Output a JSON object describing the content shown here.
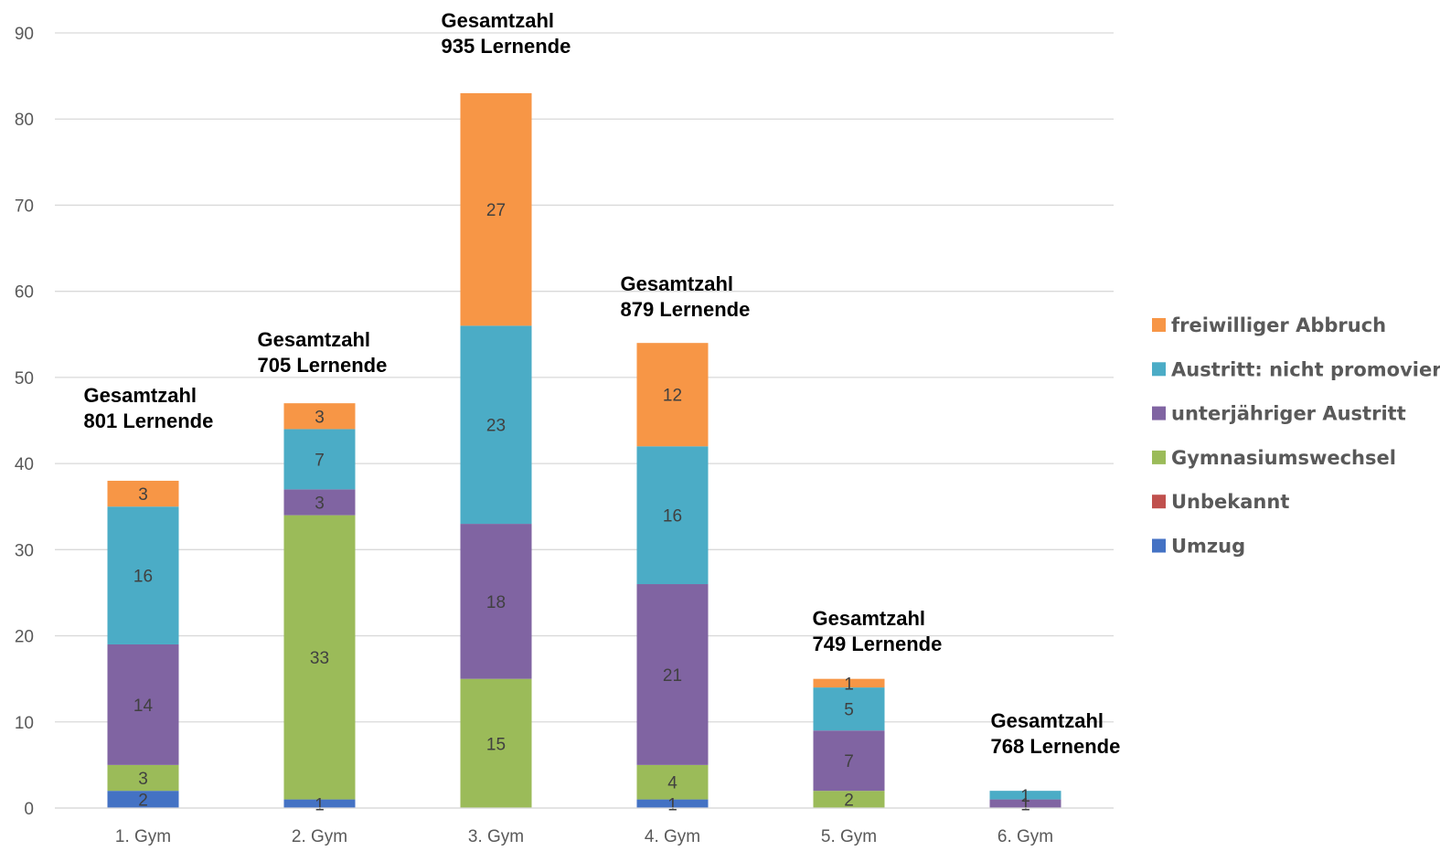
{
  "chart_data": {
    "type": "bar",
    "stacked": true,
    "categories": [
      "1. Gym",
      "2. Gym",
      "3. Gym",
      "4. Gym",
      "5. Gym",
      "6. Gym"
    ],
    "series": [
      {
        "name": "Umzug",
        "color": "#4472C4",
        "values": [
          2,
          1,
          0,
          1,
          0,
          0
        ]
      },
      {
        "name": "Unbekannt",
        "color": "#C0504D",
        "values": [
          0,
          0,
          0,
          0,
          0,
          0
        ]
      },
      {
        "name": "Gymnasiumswechsel",
        "color": "#9BBB59",
        "values": [
          3,
          33,
          15,
          4,
          2,
          0
        ]
      },
      {
        "name": "unterjähriger Austritt",
        "color": "#8064A2",
        "values": [
          14,
          3,
          18,
          21,
          7,
          1
        ]
      },
      {
        "name": "Austritt: nicht promoviert",
        "color": "#4BACC6",
        "values": [
          16,
          7,
          23,
          16,
          5,
          1
        ]
      },
      {
        "name": "freiwilliger Abbruch",
        "color": "#F79646",
        "values": [
          3,
          3,
          27,
          12,
          1,
          0
        ]
      }
    ],
    "legend_order": [
      "freiwilliger Abbruch",
      "Austritt: nicht promoviert",
      "unterjähriger Austritt",
      "Gymnasiumswechsel",
      "Unbekannt",
      "Umzug"
    ],
    "ylim": [
      0,
      90
    ],
    "yticks": [
      0,
      10,
      20,
      30,
      40,
      50,
      60,
      70,
      80,
      90
    ],
    "grid": true,
    "legend_position": "right",
    "annotations": [
      {
        "category": "1. Gym",
        "line1": "Gesamtzahl",
        "line2": "801 Lernende"
      },
      {
        "category": "2. Gym",
        "line1": "Gesamtzahl",
        "line2": "705 Lernende"
      },
      {
        "category": "3. Gym",
        "line1": "Gesamtzahl",
        "line2": "935 Lernende"
      },
      {
        "category": "4. Gym",
        "line1": "Gesamtzahl",
        "line2": "879 Lernende"
      },
      {
        "category": "5. Gym",
        "line1": "Gesamtzahl",
        "line2": "749 Lernende"
      },
      {
        "category": "6. Gym",
        "line1": "Gesamtzahl",
        "line2": "768 Lernende"
      }
    ],
    "title": "",
    "xlabel": "",
    "ylabel": ""
  }
}
